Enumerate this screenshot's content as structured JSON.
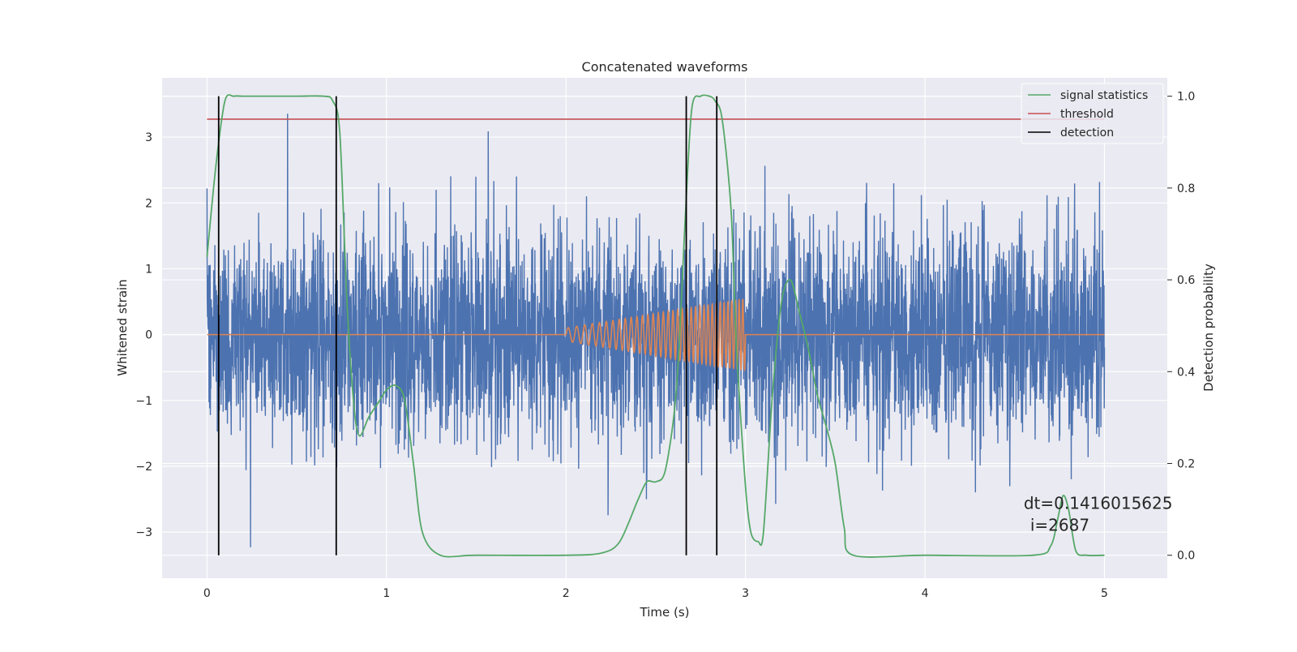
{
  "chart_data": {
    "type": "line",
    "title": "Concatenated waveforms",
    "xlabel": "Time (s)",
    "ylabel_left": "Whitened strain",
    "ylabel_right": "Detection probability",
    "xlim": [
      -0.25,
      5.35
    ],
    "ylim_left": [
      -3.7,
      3.9
    ],
    "ylim_right": [
      -0.05,
      1.04
    ],
    "x_ticks": [
      0,
      1,
      2,
      3,
      4,
      5
    ],
    "x_tick_labels": [
      "0",
      "1",
      "2",
      "3",
      "4",
      "5"
    ],
    "y_ticks_left": [
      -3,
      -2,
      -1,
      0,
      1,
      2,
      3
    ],
    "y_tick_labels_left": [
      "−3",
      "−2",
      "−1",
      "0",
      "1",
      "2",
      "3"
    ],
    "y_ticks_right": [
      0.0,
      0.2,
      0.4,
      0.6,
      0.8,
      1.0
    ],
    "y_tick_labels_right": [
      "0.0",
      "0.2",
      "0.4",
      "0.6",
      "0.8",
      "1.0"
    ],
    "grid": true,
    "legend_position": "top-right",
    "colors": {
      "background": "#eaeaf2",
      "grid": "#ffffff",
      "strain": "#4c72b0",
      "template": "#dd8452",
      "signal_statistics": "#55a868",
      "threshold": "#c44e52",
      "detection": "#000000"
    },
    "series": [
      {
        "id": "strain",
        "axis": "left",
        "x_range": [
          0,
          5
        ],
        "value_range": [
          -3.3,
          3.6
        ],
        "typical_amplitude": 0.8
      },
      {
        "id": "template",
        "axis": "left",
        "x_range": [
          0,
          5
        ],
        "chirp_range": [
          2.0,
          3.0
        ],
        "amplitude_range": [
          0.1,
          0.55
        ]
      },
      {
        "id": "signal_statistics",
        "name": "signal statistics",
        "axis": "right",
        "x": [
          0.0,
          0.05,
          0.1,
          0.15,
          0.2,
          0.3,
          0.5,
          0.65,
          0.7,
          0.74,
          0.78,
          0.82,
          0.85,
          0.9,
          0.95,
          1.0,
          1.05,
          1.1,
          1.15,
          1.2,
          1.3,
          1.5,
          2.0,
          2.2,
          2.3,
          2.4,
          2.45,
          2.5,
          2.55,
          2.6,
          2.63,
          2.66,
          2.7,
          2.75,
          2.8,
          2.83,
          2.87,
          2.92,
          2.95,
          3.0,
          3.03,
          3.07,
          3.1,
          3.15,
          3.2,
          3.25,
          3.3,
          3.35,
          3.4,
          3.45,
          3.5,
          3.55,
          3.6,
          4.0,
          4.6,
          4.7,
          4.74,
          4.77,
          4.8,
          4.84,
          4.9,
          5.0
        ],
        "values": [
          0.65,
          0.85,
          0.99,
          1.0,
          1.0,
          1.0,
          1.0,
          1.0,
          0.99,
          0.92,
          0.55,
          0.32,
          0.26,
          0.3,
          0.33,
          0.36,
          0.37,
          0.34,
          0.2,
          0.05,
          0.0,
          0.0,
          0.0,
          0.005,
          0.03,
          0.12,
          0.16,
          0.16,
          0.18,
          0.3,
          0.45,
          0.7,
          0.97,
          1.0,
          1.0,
          0.99,
          0.95,
          0.75,
          0.45,
          0.15,
          0.05,
          0.03,
          0.05,
          0.35,
          0.55,
          0.6,
          0.53,
          0.45,
          0.35,
          0.28,
          0.2,
          0.06,
          0.0,
          0.0,
          0.0,
          0.02,
          0.08,
          0.13,
          0.1,
          0.01,
          0.0,
          0.0
        ]
      },
      {
        "id": "threshold",
        "name": "threshold",
        "axis": "right",
        "x": [
          0,
          5
        ],
        "values": [
          0.95,
          0.95
        ]
      },
      {
        "id": "detection",
        "name": "detection",
        "axis": "right",
        "type": "vlines",
        "x": [
          0.065,
          0.72,
          2.67,
          2.84
        ],
        "y_range": [
          0.0,
          1.0
        ]
      }
    ],
    "legend": [
      {
        "label": "signal statistics",
        "series": "signal_statistics"
      },
      {
        "label": "threshold",
        "series": "threshold"
      },
      {
        "label": "detection",
        "series": "detection"
      }
    ],
    "annotation": {
      "line1": "dt=0.1416015625",
      "line2": "i=2687",
      "x": 4.55,
      "y_left": -2.6
    }
  }
}
